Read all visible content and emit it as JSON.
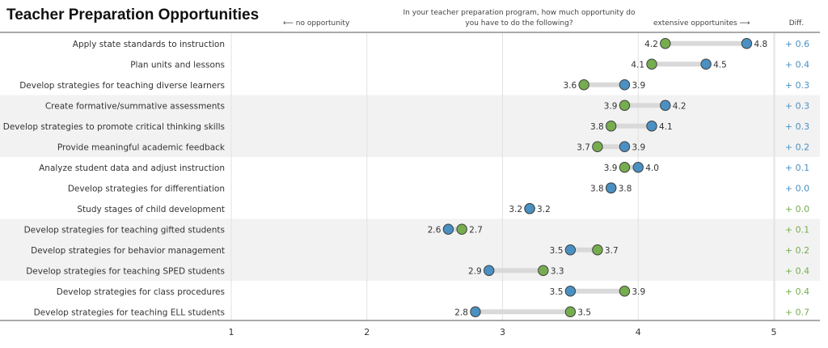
{
  "title": "Teacher Preparation Opportunities",
  "question_line1": "In your teacher preparation program, how much opportunity do",
  "question_line2": "you have to do the following?",
  "left_hint": "⟵  no opportunity",
  "right_hint": "extensive opportunites  ⟶",
  "diff_header": "Diff.",
  "colors": {
    "blue": "#4a90c2",
    "green": "#76ad4f",
    "band": "#f2f2f2",
    "connector": "#d9d9d9",
    "diff_blue": "#4a90c2",
    "diff_green": "#76ad4f"
  },
  "chart_data": {
    "type": "dumbbell",
    "xlim": [
      1,
      5
    ],
    "xticks": [
      1,
      2,
      3,
      4,
      5
    ],
    "rows": [
      {
        "label": "Apply state standards to instruction",
        "green": 4.2,
        "blue": 4.8,
        "diff": "+ 0.6",
        "diff_color": "blue"
      },
      {
        "label": "Plan units and lessons",
        "green": 4.1,
        "blue": 4.5,
        "diff": "+ 0.4",
        "diff_color": "blue"
      },
      {
        "label": "Develop strategies for teaching diverse learners",
        "green": 3.6,
        "blue": 3.9,
        "diff": "+ 0.3",
        "diff_color": "blue"
      },
      {
        "label": "Create formative/summative assessments",
        "green": 3.9,
        "blue": 4.2,
        "diff": "+ 0.3",
        "diff_color": "blue"
      },
      {
        "label": "Develop strategies to promote critical thinking skills",
        "green": 3.8,
        "blue": 4.1,
        "diff": "+ 0.3",
        "diff_color": "blue"
      },
      {
        "label": "Provide meaningful academic feedback",
        "green": 3.7,
        "blue": 3.9,
        "diff": "+ 0.2",
        "diff_color": "blue"
      },
      {
        "label": "Analyze student data and adjust instruction",
        "green": 3.9,
        "blue": 4.0,
        "diff": "+ 0.1",
        "diff_color": "blue"
      },
      {
        "label": "Develop strategies for differentiation",
        "green": 3.8,
        "blue": 3.8,
        "diff": "+ 0.0",
        "diff_color": "blue"
      },
      {
        "label": "Study stages of child development",
        "green": 3.2,
        "blue": 3.2,
        "diff": "+ 0.0",
        "diff_color": "green"
      },
      {
        "label": "Develop strategies for teaching gifted students",
        "green": 2.7,
        "blue": 2.6,
        "diff": "+ 0.1",
        "diff_color": "green"
      },
      {
        "label": "Develop strategies for behavior management",
        "green": 3.7,
        "blue": 3.5,
        "diff": "+ 0.2",
        "diff_color": "green"
      },
      {
        "label": "Develop strategies for teaching SPED students",
        "green": 3.3,
        "blue": 2.9,
        "diff": "+ 0.4",
        "diff_color": "green"
      },
      {
        "label": "Develop strategies for class procedures",
        "green": 3.9,
        "blue": 3.5,
        "diff": "+ 0.4",
        "diff_color": "green"
      },
      {
        "label": "Develop strategies for teaching ELL students",
        "green": 3.5,
        "blue": 2.8,
        "diff": "+ 0.7",
        "diff_color": "green"
      }
    ]
  }
}
